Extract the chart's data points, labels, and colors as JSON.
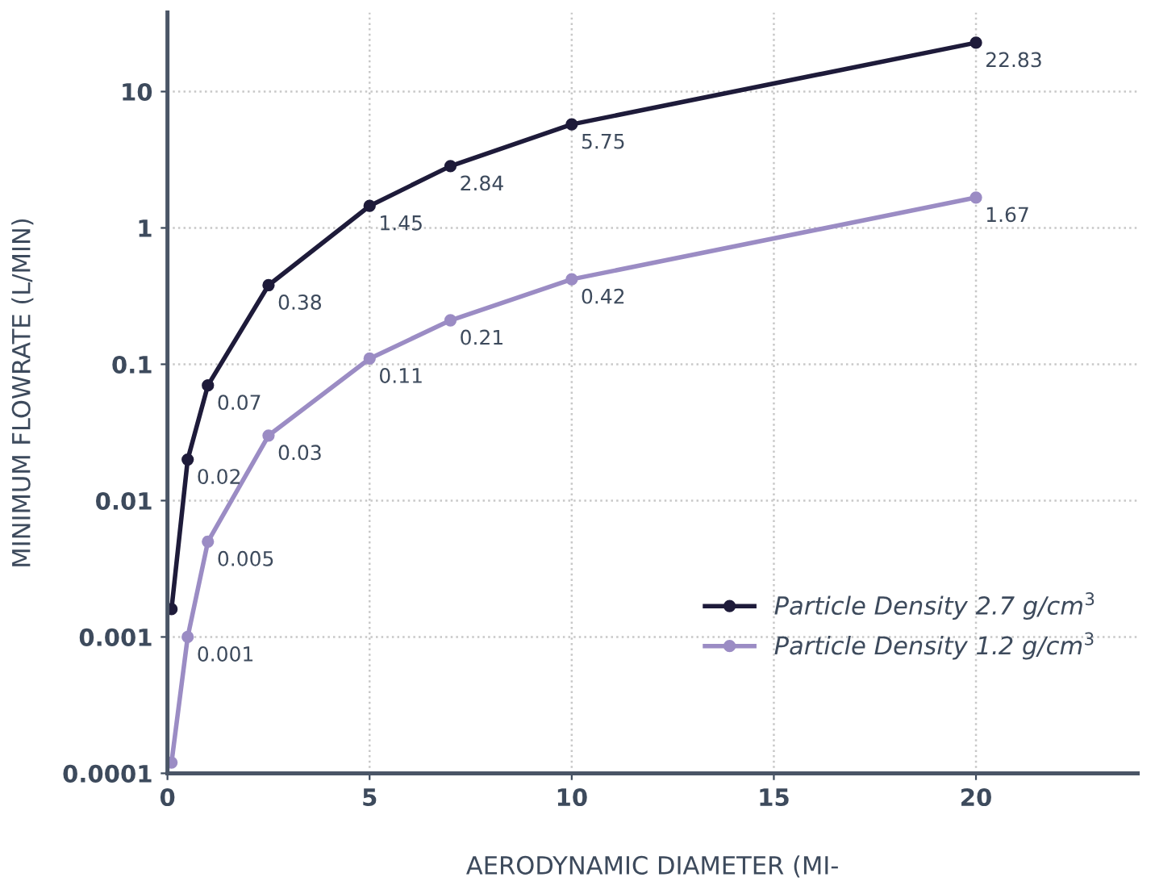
{
  "chart_data": {
    "type": "line",
    "xlabel": "AERODYNAMIC DIAMETER (MI-",
    "ylabel": "MINIMUM FLOWRATE (L/MIN)",
    "x": [
      0.1,
      0.5,
      1,
      2.5,
      5,
      7,
      10,
      20
    ],
    "series": [
      {
        "name": "Particle Density 2.7 g/cm$^{3}$",
        "color": "#1e1b3a",
        "values": [
          0.0016,
          0.02,
          0.07,
          0.38,
          1.45,
          2.84,
          5.75,
          22.83
        ],
        "value_labels": [
          null,
          "0.02",
          "0.07",
          "0.38",
          "1.45",
          "2.84",
          "5.75",
          "22.83"
        ]
      },
      {
        "name": "Particle Density 1.2 g/cm$^{3}$",
        "color": "#9b8cc4",
        "values": [
          0.00012,
          0.001,
          0.005,
          0.03,
          0.11,
          0.21,
          0.42,
          1.67
        ],
        "value_labels": [
          null,
          "0.001",
          "0.005",
          "0.03",
          "0.11",
          "0.21",
          "0.42",
          "1.67"
        ]
      }
    ],
    "log": "y",
    "xlim": [
      0,
      24
    ],
    "xticks": [
      0,
      5,
      10,
      15,
      20
    ],
    "ylim": [
      0.0001,
      38
    ],
    "yticks": [
      0.0001,
      0.001,
      0.01,
      0.1,
      1,
      10
    ],
    "grid": true,
    "legend": "bottom right",
    "marker": "circle",
    "line_style": "solid"
  }
}
